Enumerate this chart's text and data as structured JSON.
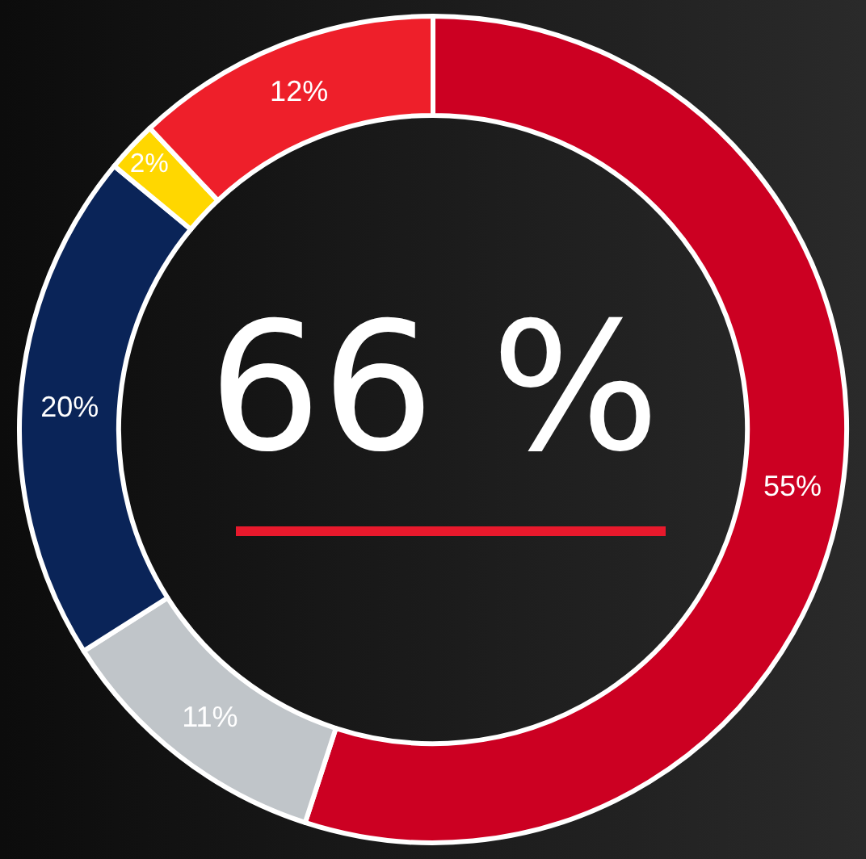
{
  "chart_data": {
    "type": "donut",
    "categories": [
      null,
      null,
      null,
      null,
      null
    ],
    "values": [
      55,
      11,
      20,
      2,
      12
    ],
    "colors": [
      "#cc0022",
      "#c0c5c9",
      "#0a2458",
      "#ffd700",
      "#ee1f2a"
    ],
    "value_labels": [
      "55%",
      "11%",
      "20%",
      "2%",
      "12%"
    ],
    "annotations": [
      "66 %"
    ],
    "legend": false
  }
}
